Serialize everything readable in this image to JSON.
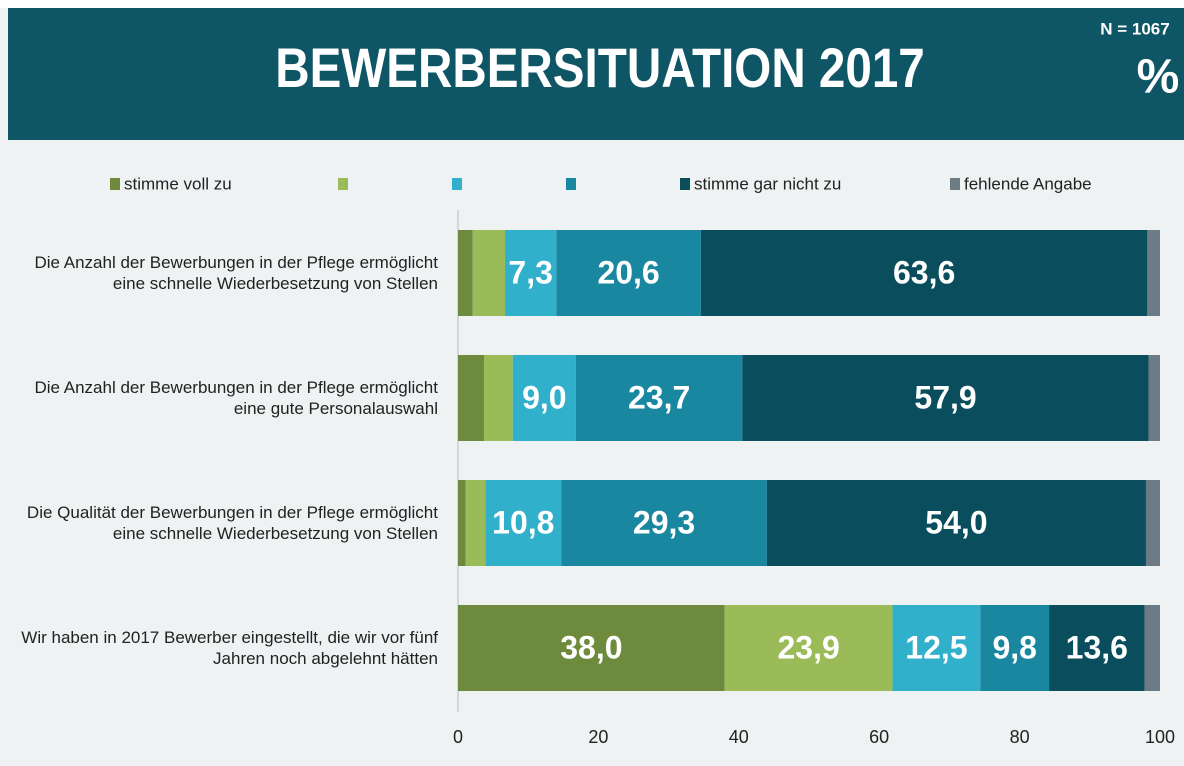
{
  "chart_data": {
    "type": "stacked_barh",
    "title": "BEWERBERSITUATION 2017",
    "n_label": "N = 1067",
    "unit_label": "%",
    "categories": [
      "Die Anzahl der Bewerbungen in der Pflege ermöglicht eine schnelle Wiederbesetzung von Stellen",
      "Die Anzahl der Bewerbungen in der Pflege ermöglicht eine gute Personalauswahl",
      "Die Qualität der Bewerbungen in der Pflege ermöglicht eine schnelle Wiederbesetzung von Stellen",
      "Wir haben in 2017 Bewerber eingestellt, die wir vor fünf Jahren noch abgelehnt hätten"
    ],
    "series": [
      {
        "name": "stimme voll zu",
        "color": "#6e8b3d",
        "values": [
          2.1,
          3.7,
          1.1,
          38.0
        ],
        "value_labels": [
          null,
          null,
          null,
          "38,0"
        ]
      },
      {
        "name": null,
        "color": "#9bbb59",
        "values": [
          4.6,
          4.1,
          2.8,
          23.9
        ],
        "value_labels": [
          null,
          null,
          null,
          "23,9"
        ]
      },
      {
        "name": null,
        "color": "#31b0cc",
        "values": [
          7.3,
          9.0,
          10.8,
          12.5
        ],
        "value_labels": [
          "7,3",
          "9,0",
          "10,8",
          "12,5"
        ]
      },
      {
        "name": null,
        "color": "#1a87a0",
        "values": [
          20.6,
          23.7,
          29.3,
          9.8
        ],
        "value_labels": [
          "20,6",
          "23,7",
          "29,3",
          "9,8"
        ]
      },
      {
        "name": "stimme gar nicht zu",
        "color": "#0a4e5e",
        "values": [
          63.6,
          57.9,
          54.0,
          13.6
        ],
        "value_labels": [
          "63,6",
          "57,9",
          "54,0",
          "13,6"
        ]
      },
      {
        "name": "fehlende Angabe",
        "color": "#6d7b86",
        "values": [
          1.8,
          1.6,
          2.0,
          2.2
        ],
        "value_labels": [
          null,
          null,
          null,
          null
        ]
      }
    ],
    "xlim": [
      0,
      100
    ],
    "xticks": [
      0,
      20,
      40,
      60,
      80,
      100
    ],
    "legend": "top",
    "grid": false
  }
}
